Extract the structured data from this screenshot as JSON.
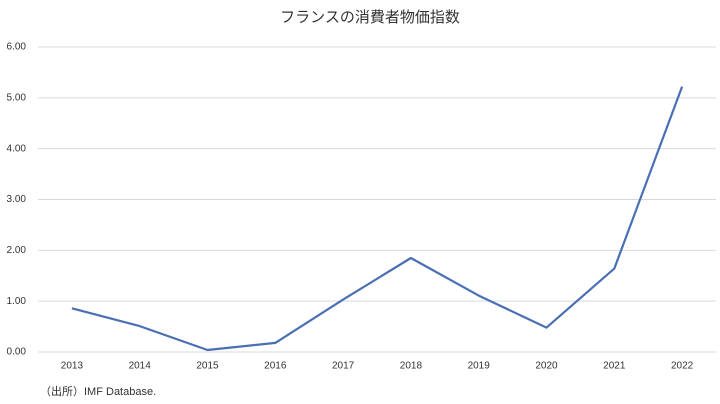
{
  "chart_data": {
    "type": "line",
    "title": "フランスの消費者物価指数",
    "categories": [
      "2013",
      "2014",
      "2015",
      "2016",
      "2017",
      "2018",
      "2019",
      "2020",
      "2021",
      "2022"
    ],
    "values": [
      0.86,
      0.51,
      0.04,
      0.18,
      1.03,
      1.85,
      1.11,
      0.48,
      1.64,
      5.22
    ],
    "color": "#4a6fb5",
    "ylim": [
      0,
      6
    ],
    "yticks": [
      {
        "value": 0,
        "label": "0.00"
      },
      {
        "value": 1,
        "label": "1.00"
      },
      {
        "value": 2,
        "label": "2.00"
      },
      {
        "value": 3,
        "label": "3.00"
      },
      {
        "value": 4,
        "label": "4.00"
      },
      {
        "value": 5,
        "label": "5.00"
      },
      {
        "value": 6,
        "label": "6.00"
      }
    ],
    "grid": true,
    "source": "（出所）IMF Database."
  }
}
